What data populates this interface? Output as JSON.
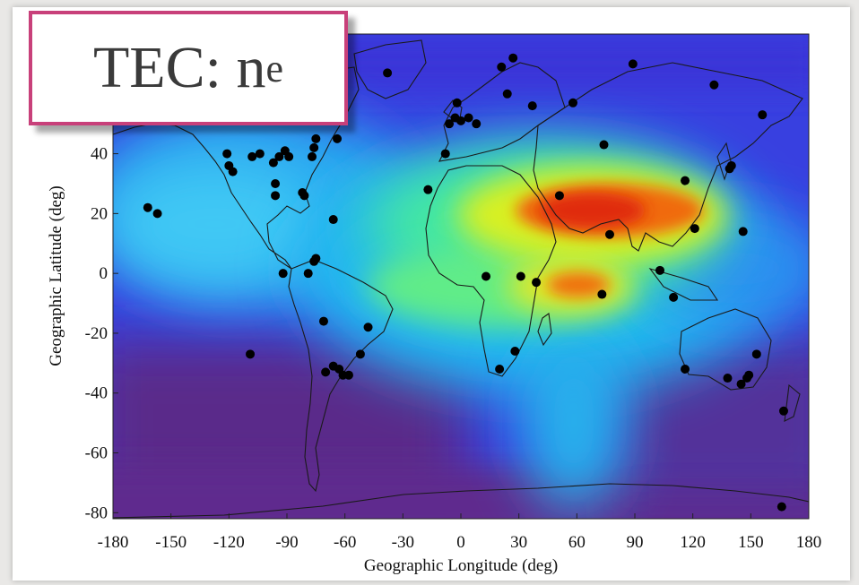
{
  "label_box": {
    "main": "TEC: n",
    "subscript": "e",
    "border_color": "#c8407a"
  },
  "chart_data": {
    "type": "heatmap",
    "title": "",
    "xlabel": "Geographic Longitude (deg)",
    "ylabel": "Geographic Latitude (deg)",
    "xlim": [
      -180,
      180
    ],
    "ylim": [
      -82,
      80
    ],
    "x_ticks": [
      -180,
      -150,
      -120,
      -90,
      -60,
      -30,
      0,
      30,
      60,
      90,
      120,
      150,
      180
    ],
    "y_ticks": [
      -80,
      -60,
      -40,
      -20,
      0,
      20,
      40
    ],
    "colorscale": [
      "#4a1e66",
      "#6c3096",
      "#3a3ae6",
      "#2f7bf0",
      "#18c8f0",
      "#48f0b0",
      "#b8f030",
      "#f0e020",
      "#f07010",
      "#e02a10"
    ],
    "stations": [
      [
        -162,
        22
      ],
      [
        -157,
        20
      ],
      [
        -121,
        40
      ],
      [
        -120,
        36
      ],
      [
        -118,
        34
      ],
      [
        -108,
        39
      ],
      [
        -104,
        40
      ],
      [
        -97,
        37
      ],
      [
        -96,
        30
      ],
      [
        -96,
        26
      ],
      [
        -94,
        39
      ],
      [
        -91,
        41
      ],
      [
        -89,
        39
      ],
      [
        -82,
        27
      ],
      [
        -81,
        26
      ],
      [
        -77,
        39
      ],
      [
        -76,
        42
      ],
      [
        -75,
        45
      ],
      [
        -66,
        18
      ],
      [
        -64,
        45
      ],
      [
        -92,
        0
      ],
      [
        -79,
        0
      ],
      [
        -76,
        4
      ],
      [
        -75,
        5
      ],
      [
        -71,
        -16
      ],
      [
        -70,
        -33
      ],
      [
        -66,
        -31
      ],
      [
        -63,
        -32
      ],
      [
        -61,
        -34
      ],
      [
        -58,
        -34
      ],
      [
        -52,
        -27
      ],
      [
        -48,
        -18
      ],
      [
        -109,
        -27
      ],
      [
        -38,
        67
      ],
      [
        -17,
        28
      ],
      [
        -8,
        40
      ],
      [
        -6,
        50
      ],
      [
        -3,
        52
      ],
      [
        0,
        51
      ],
      [
        -2,
        57
      ],
      [
        4,
        52
      ],
      [
        8,
        50
      ],
      [
        21,
        69
      ],
      [
        24,
        60
      ],
      [
        27,
        72
      ],
      [
        37,
        56
      ],
      [
        58,
        57
      ],
      [
        74,
        43
      ],
      [
        89,
        70
      ],
      [
        131,
        63
      ],
      [
        156,
        53
      ],
      [
        51,
        26
      ],
      [
        77,
        13
      ],
      [
        73,
        -7
      ],
      [
        39,
        -3
      ],
      [
        31,
        -1
      ],
      [
        13,
        -1
      ],
      [
        28,
        -26
      ],
      [
        20,
        -32
      ],
      [
        116,
        31
      ],
      [
        121,
        15
      ],
      [
        103,
        1
      ],
      [
        110,
        -8
      ],
      [
        140,
        36
      ],
      [
        139,
        35
      ],
      [
        146,
        14
      ],
      [
        116,
        -32
      ],
      [
        138,
        -35
      ],
      [
        145,
        -37
      ],
      [
        148,
        -35
      ],
      [
        149,
        -34
      ],
      [
        153,
        -27
      ],
      [
        167,
        -46
      ],
      [
        166,
        -78
      ]
    ]
  }
}
